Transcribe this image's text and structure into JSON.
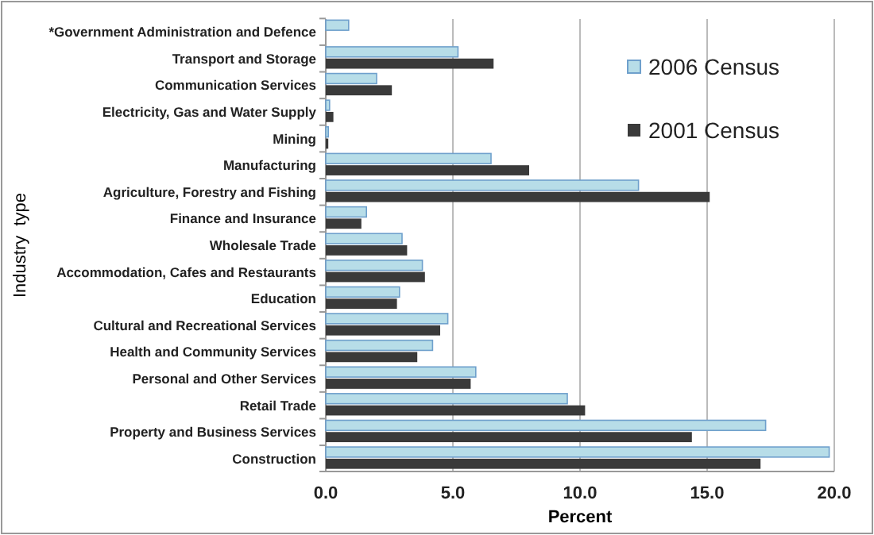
{
  "chart_data": {
    "type": "bar",
    "orientation": "horizontal",
    "xlabel": "Percent",
    "ylabel": "Industry  type",
    "categories": [
      "*Government Administration and Defence",
      "Transport and Storage",
      "Communication Services",
      "Electricity, Gas and Water Supply",
      "Mining",
      "Manufacturing",
      "Agriculture, Forestry and Fishing",
      "Finance and Insurance",
      "Wholesale Trade",
      "Accommodation, Cafes and Restaurants",
      "Education",
      "Cultural and Recreational Services",
      "Health and Community Services",
      "Personal and Other Services",
      "Retail Trade",
      "Property and Business Services",
      "Construction"
    ],
    "series": [
      {
        "name": "2006 Census",
        "color": "#b7dde8",
        "values": [
          0.9,
          5.2,
          2.0,
          0.15,
          0.1,
          6.5,
          12.3,
          1.6,
          3.0,
          3.8,
          2.9,
          4.8,
          4.2,
          5.9,
          9.5,
          17.3,
          19.8
        ]
      },
      {
        "name": "2001 Census",
        "color": "#3a3a3a",
        "values": [
          null,
          6.6,
          2.6,
          0.3,
          0.1,
          8.0,
          15.1,
          1.4,
          3.2,
          3.9,
          2.8,
          4.5,
          3.6,
          5.7,
          10.2,
          14.4,
          17.1
        ]
      }
    ],
    "xlim": [
      0,
      20
    ],
    "xticks": [
      {
        "value": 0,
        "label": "0.0"
      },
      {
        "value": 5,
        "label": "5.0"
      },
      {
        "value": 10,
        "label": "10.0"
      },
      {
        "value": 15,
        "label": "15.0"
      },
      {
        "value": 20,
        "label": "20.0"
      }
    ],
    "grid": "x",
    "legend": "top right"
  }
}
